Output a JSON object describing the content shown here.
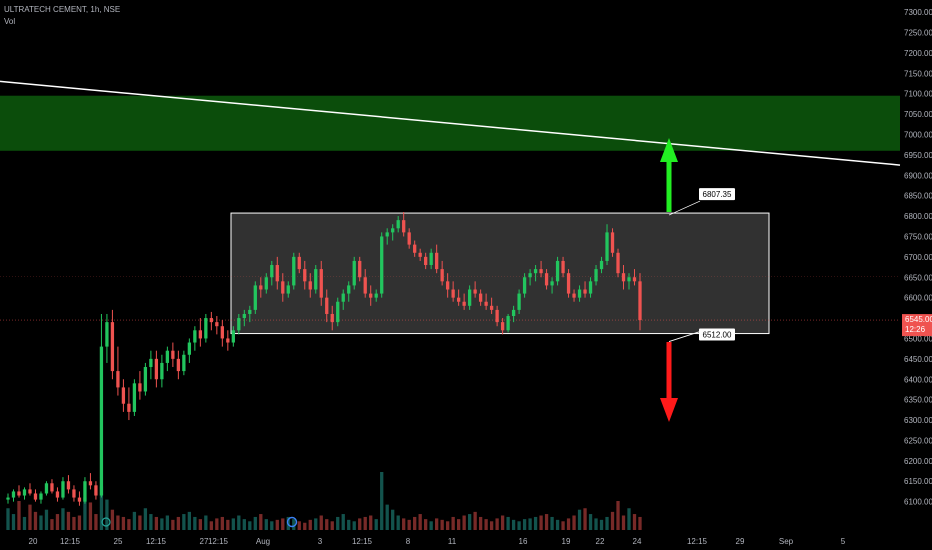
{
  "legend": {
    "symbol_line": "ULTRATECH CEMENT, 1h, NSE",
    "indicator": "Vol"
  },
  "colors": {
    "up": "#26a69a",
    "up_bright": "#22c55e",
    "down": "#ef5350",
    "zone": "#0b4d0b",
    "box_border": "#ffffff",
    "box_fill": "#3a3a3a",
    "trendline": "#ffffff",
    "arrow_up": "#22ee22",
    "arrow_down": "#ff1a1a"
  },
  "chart_data": {
    "type": "candlestick",
    "symbol": "ULTRATECH CEMENT",
    "interval": "1h",
    "exchange": "NSE",
    "ylim": [
      6055,
      7310
    ],
    "y_ticks": [
      6100,
      6150,
      6200,
      6250,
      6300,
      6350,
      6400,
      6450,
      6500,
      6550,
      6600,
      6650,
      6700,
      6750,
      6800,
      6850,
      6900,
      6950,
      7000,
      7050,
      7100,
      7150,
      7200,
      7250,
      7300
    ],
    "x_ticks": [
      "20",
      "12:15",
      "25",
      "12:15",
      "27",
      "12:15",
      "Aug",
      "3",
      "12:15",
      "8",
      "11",
      "16",
      "19",
      "22",
      "24",
      "12:15",
      "29",
      "Sep",
      "5"
    ],
    "last_price": "6545.00",
    "countdown": "12:26",
    "resistance_zone": [
      6960,
      7095
    ],
    "trendline": {
      "from": 7130,
      "to": 6925
    },
    "range_box": {
      "top": 6807.35,
      "bottom": 6512.0
    },
    "range_labels": {
      "top": "6807.35",
      "bottom": "6512.00"
    },
    "candles": [
      [
        6105,
        6120,
        6095,
        6110
      ],
      [
        6110,
        6130,
        6100,
        6125
      ],
      [
        6125,
        6140,
        6110,
        6115
      ],
      [
        6115,
        6135,
        6105,
        6130
      ],
      [
        6130,
        6145,
        6115,
        6120
      ],
      [
        6120,
        6130,
        6100,
        6105
      ],
      [
        6105,
        6125,
        6095,
        6120
      ],
      [
        6120,
        6150,
        6115,
        6145
      ],
      [
        6145,
        6155,
        6120,
        6125
      ],
      [
        6125,
        6135,
        6100,
        6110
      ],
      [
        6110,
        6160,
        6105,
        6150
      ],
      [
        6150,
        6165,
        6120,
        6130
      ],
      [
        6130,
        6140,
        6100,
        6110
      ],
      [
        6110,
        6125,
        6090,
        6100
      ],
      [
        6100,
        6160,
        6095,
        6150
      ],
      [
        6150,
        6170,
        6130,
        6140
      ],
      [
        6140,
        6150,
        6105,
        6115
      ],
      [
        6115,
        6560,
        6110,
        6480
      ],
      [
        6480,
        6560,
        6440,
        6540
      ],
      [
        6540,
        6570,
        6400,
        6420
      ],
      [
        6420,
        6480,
        6360,
        6380
      ],
      [
        6380,
        6400,
        6320,
        6340
      ],
      [
        6340,
        6380,
        6300,
        6320
      ],
      [
        6320,
        6400,
        6310,
        6390
      ],
      [
        6390,
        6420,
        6350,
        6370
      ],
      [
        6370,
        6440,
        6360,
        6430
      ],
      [
        6430,
        6470,
        6400,
        6450
      ],
      [
        6450,
        6470,
        6380,
        6400
      ],
      [
        6400,
        6460,
        6380,
        6440
      ],
      [
        6440,
        6480,
        6420,
        6470
      ],
      [
        6470,
        6490,
        6430,
        6450
      ],
      [
        6450,
        6470,
        6400,
        6420
      ],
      [
        6420,
        6470,
        6410,
        6460
      ],
      [
        6460,
        6500,
        6440,
        6490
      ],
      [
        6490,
        6530,
        6470,
        6520
      ],
      [
        6520,
        6550,
        6480,
        6500
      ],
      [
        6500,
        6560,
        6490,
        6550
      ],
      [
        6550,
        6565,
        6520,
        6540
      ],
      [
        6540,
        6555,
        6510,
        6530
      ],
      [
        6530,
        6545,
        6480,
        6500
      ],
      [
        6500,
        6520,
        6470,
        6490
      ],
      [
        6490,
        6530,
        6480,
        6520
      ],
      [
        6520,
        6560,
        6510,
        6550
      ],
      [
        6550,
        6570,
        6530,
        6560
      ],
      [
        6560,
        6580,
        6540,
        6570
      ],
      [
        6570,
        6640,
        6560,
        6630
      ],
      [
        6630,
        6650,
        6600,
        6620
      ],
      [
        6620,
        6660,
        6610,
        6650
      ],
      [
        6650,
        6690,
        6630,
        6680
      ],
      [
        6680,
        6700,
        6620,
        6640
      ],
      [
        6640,
        6660,
        6590,
        6610
      ],
      [
        6610,
        6640,
        6600,
        6630
      ],
      [
        6630,
        6710,
        6620,
        6700
      ],
      [
        6700,
        6710,
        6660,
        6670
      ],
      [
        6670,
        6690,
        6620,
        6640
      ],
      [
        6640,
        6660,
        6600,
        6620
      ],
      [
        6620,
        6680,
        6610,
        6670
      ],
      [
        6670,
        6690,
        6580,
        6600
      ],
      [
        6600,
        6620,
        6540,
        6560
      ],
      [
        6560,
        6580,
        6520,
        6540
      ],
      [
        6540,
        6600,
        6530,
        6590
      ],
      [
        6590,
        6620,
        6570,
        6610
      ],
      [
        6610,
        6640,
        6590,
        6630
      ],
      [
        6630,
        6700,
        6620,
        6690
      ],
      [
        6690,
        6700,
        6640,
        6650
      ],
      [
        6650,
        6670,
        6600,
        6610
      ],
      [
        6610,
        6630,
        6580,
        6600
      ],
      [
        6600,
        6620,
        6590,
        6610
      ],
      [
        6610,
        6760,
        6600,
        6750
      ],
      [
        6750,
        6770,
        6730,
        6760
      ],
      [
        6760,
        6780,
        6740,
        6770
      ],
      [
        6770,
        6800,
        6760,
        6790
      ],
      [
        6790,
        6810,
        6750,
        6760
      ],
      [
        6760,
        6770,
        6720,
        6730
      ],
      [
        6730,
        6740,
        6700,
        6710
      ],
      [
        6710,
        6720,
        6690,
        6700
      ],
      [
        6700,
        6710,
        6670,
        6680
      ],
      [
        6680,
        6720,
        6670,
        6710
      ],
      [
        6710,
        6730,
        6660,
        6670
      ],
      [
        6670,
        6690,
        6630,
        6640
      ],
      [
        6640,
        6660,
        6600,
        6620
      ],
      [
        6620,
        6640,
        6590,
        6600
      ],
      [
        6600,
        6620,
        6580,
        6590
      ],
      [
        6590,
        6610,
        6570,
        6580
      ],
      [
        6580,
        6630,
        6570,
        6620
      ],
      [
        6620,
        6640,
        6600,
        6610
      ],
      [
        6610,
        6620,
        6580,
        6590
      ],
      [
        6590,
        6610,
        6570,
        6580
      ],
      [
        6580,
        6600,
        6560,
        6570
      ],
      [
        6570,
        6580,
        6530,
        6540
      ],
      [
        6540,
        6550,
        6510,
        6520
      ],
      [
        6520,
        6560,
        6515,
        6555
      ],
      [
        6555,
        6580,
        6540,
        6570
      ],
      [
        6570,
        6620,
        6560,
        6610
      ],
      [
        6610,
        6660,
        6600,
        6650
      ],
      [
        6650,
        6670,
        6630,
        6660
      ],
      [
        6660,
        6680,
        6640,
        6670
      ],
      [
        6670,
        6690,
        6650,
        6660
      ],
      [
        6660,
        6670,
        6620,
        6630
      ],
      [
        6630,
        6650,
        6610,
        6640
      ],
      [
        6640,
        6700,
        6630,
        6690
      ],
      [
        6690,
        6700,
        6650,
        6660
      ],
      [
        6660,
        6670,
        6600,
        6610
      ],
      [
        6610,
        6620,
        6590,
        6600
      ],
      [
        6600,
        6630,
        6590,
        6620
      ],
      [
        6620,
        6640,
        6600,
        6610
      ],
      [
        6610,
        6650,
        6600,
        6640
      ],
      [
        6640,
        6680,
        6630,
        6670
      ],
      [
        6670,
        6700,
        6660,
        6690
      ],
      [
        6690,
        6780,
        6680,
        6760
      ],
      [
        6760,
        6770,
        6700,
        6710
      ],
      [
        6710,
        6720,
        6650,
        6660
      ],
      [
        6660,
        6680,
        6620,
        6640
      ],
      [
        6640,
        6660,
        6620,
        6650
      ],
      [
        6650,
        6670,
        6630,
        6640
      ],
      [
        6640,
        6660,
        6520,
        6545
      ]
    ],
    "volume": [
      30,
      22,
      40,
      18,
      35,
      25,
      20,
      28,
      15,
      22,
      30,
      25,
      18,
      20,
      45,
      38,
      22,
      60,
      42,
      28,
      20,
      18,
      15,
      25,
      20,
      30,
      22,
      18,
      16,
      20,
      14,
      18,
      22,
      25,
      18,
      15,
      20,
      12,
      16,
      18,
      14,
      16,
      20,
      15,
      12,
      18,
      22,
      15,
      12,
      14,
      16,
      18,
      15,
      12,
      10,
      14,
      16,
      20,
      15,
      12,
      18,
      22,
      14,
      12,
      16,
      18,
      20,
      15,
      80,
      35,
      28,
      20,
      16,
      14,
      18,
      22,
      15,
      12,
      16,
      14,
      12,
      18,
      15,
      20,
      22,
      25,
      18,
      15,
      12,
      16,
      20,
      18,
      14,
      12,
      15,
      16,
      18,
      20,
      22,
      18,
      14,
      12,
      16,
      20,
      28,
      30,
      22,
      16,
      14,
      18,
      25,
      40,
      20,
      30,
      22,
      18
    ]
  }
}
